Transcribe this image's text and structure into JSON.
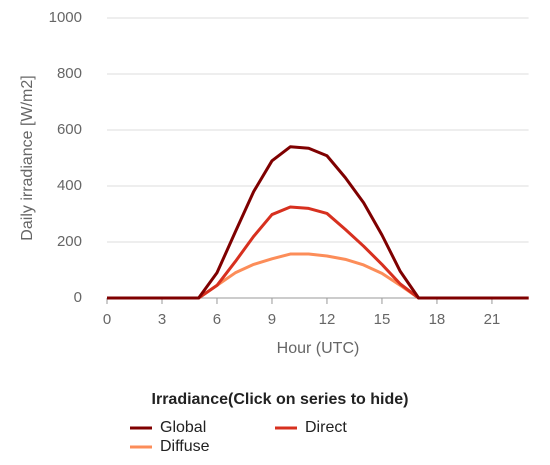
{
  "chart_data": {
    "type": "line",
    "y_label": "Daily irradiance [W/m2]",
    "x_label": "Hour (UTC)",
    "legend_title": "Irradiance(Click on series to hide)",
    "x": [
      0,
      1,
      2,
      3,
      4,
      5,
      6,
      7,
      8,
      9,
      10,
      11,
      12,
      13,
      14,
      15,
      16,
      17,
      18,
      19,
      20,
      21,
      22,
      23
    ],
    "xlim": [
      0,
      23
    ],
    "xticks": [
      0,
      3,
      6,
      9,
      12,
      15,
      18,
      21
    ],
    "ylim": [
      0,
      1000
    ],
    "yticks": [
      0,
      200,
      400,
      600,
      800,
      1000
    ],
    "grid": true,
    "series": [
      {
        "name": "Global",
        "color": "#7f0000",
        "values": [
          0,
          0,
          0,
          0,
          0,
          0,
          90,
          236,
          380,
          490,
          540,
          535,
          508,
          430,
          340,
          225,
          95,
          0,
          0,
          0,
          0,
          0,
          0,
          0
        ]
      },
      {
        "name": "Direct",
        "color": "#d7301f",
        "values": [
          0,
          0,
          0,
          0,
          0,
          0,
          45,
          130,
          220,
          298,
          325,
          320,
          302,
          245,
          185,
          120,
          50,
          0,
          0,
          0,
          0,
          0,
          0,
          0
        ]
      },
      {
        "name": "Diffuse",
        "color": "#fc8d59",
        "values": [
          0,
          0,
          0,
          0,
          0,
          0,
          45,
          90,
          120,
          140,
          157,
          157,
          150,
          138,
          118,
          88,
          45,
          0,
          0,
          0,
          0,
          0,
          0,
          0
        ]
      }
    ]
  }
}
